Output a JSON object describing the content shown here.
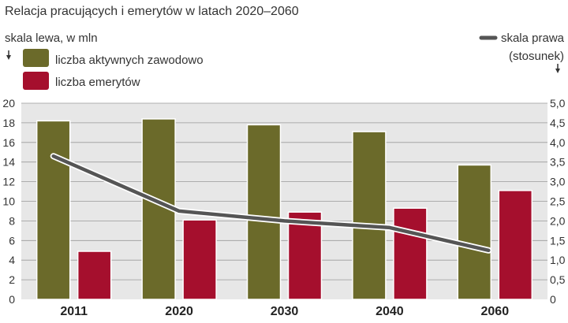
{
  "chart_data": {
    "type": "bar",
    "title": "Relacja pracujących i emerytów w latach 2020–2060",
    "left_axis_label": "skala lewa, w mln",
    "right_axis_label_line1": "skala prawa",
    "right_axis_label_line2": "(stosunek)",
    "categories": [
      "2011",
      "2020",
      "2030",
      "2040",
      "2060"
    ],
    "ylim_left": [
      0,
      20
    ],
    "yticks_left": [
      "0",
      "2",
      "4",
      "6",
      "8",
      "10",
      "12",
      "14",
      "16",
      "18",
      "20"
    ],
    "ylim_right": [
      0,
      5.0
    ],
    "yticks_right": [
      "0",
      "0,5",
      "1,0",
      "1,5",
      "2,0",
      "2,5",
      "3,0",
      "3,5",
      "4,0",
      "4,5",
      "5,0"
    ],
    "legend_position": "top-left",
    "grid": true,
    "series": [
      {
        "name": "liczba aktywnych zawodowo",
        "axis": "left",
        "kind": "bar",
        "color": "#6b6a2a",
        "values": [
          18.2,
          18.4,
          17.8,
          17.1,
          13.7
        ]
      },
      {
        "name": "liczba emerytów",
        "axis": "left",
        "kind": "bar",
        "color": "#a50f2d",
        "values": [
          4.9,
          8.1,
          8.9,
          9.3,
          11.1
        ]
      },
      {
        "name": "stosunek",
        "axis": "right",
        "kind": "line",
        "color": "#555555",
        "values": [
          3.65,
          2.25,
          2.0,
          1.83,
          1.25
        ]
      }
    ]
  }
}
